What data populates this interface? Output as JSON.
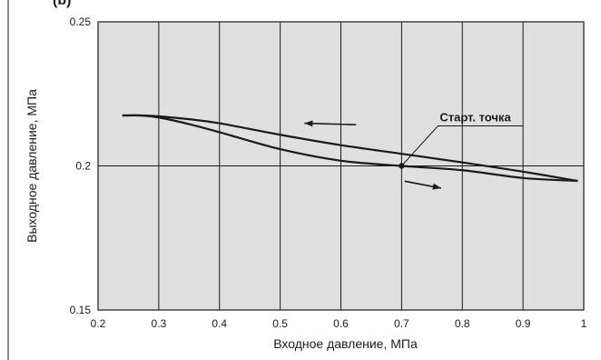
{
  "header_fragment": "(b)",
  "chart_data": {
    "type": "line",
    "xlabel": "Входное давление, МПа",
    "ylabel": "Выходное давление, МПа",
    "xlim": [
      0.2,
      1.0
    ],
    "ylim": [
      0.15,
      0.25
    ],
    "x_ticks": [
      "0.2",
      "0.3",
      "0.4",
      "0.5",
      "0.6",
      "0.7",
      "0.8",
      "0.9",
      "1"
    ],
    "y_ticks": [
      "0.25",
      "0.2",
      "0.15"
    ],
    "grid": "vertical lines at each x tick, horizontal line at 0.2",
    "background": "#e0e0e0",
    "series": [
      {
        "x": [
          0.24,
          0.27,
          0.3,
          0.35,
          0.4,
          0.5,
          0.6,
          0.7,
          0.8,
          0.9,
          0.99
        ],
        "y": [
          0.2175,
          0.2175,
          0.2172,
          0.2162,
          0.2148,
          0.2108,
          0.2072,
          0.2042,
          0.2012,
          0.198,
          0.1948
        ]
      },
      {
        "x": [
          0.24,
          0.27,
          0.3,
          0.35,
          0.4,
          0.5,
          0.6,
          0.7,
          0.8,
          0.9,
          0.99
        ],
        "y": [
          0.2175,
          0.2175,
          0.2168,
          0.2145,
          0.2117,
          0.2058,
          0.2018,
          0.2,
          0.1985,
          0.1958,
          0.1948
        ]
      }
    ],
    "annotations": [
      {
        "text": "Старт. точка",
        "point": [
          0.7,
          0.2
        ]
      }
    ],
    "arrows": [
      {
        "from": [
          0.625,
          0.2143
        ],
        "to": [
          0.54,
          0.2148
        ],
        "meaning": "direction of decreasing inlet pressure (upper curve)"
      },
      {
        "from": [
          0.705,
          0.1947
        ],
        "to": [
          0.765,
          0.1923
        ],
        "meaning": "direction of increasing inlet pressure (lower curve)"
      }
    ],
    "colors": {
      "line": "#1a1a1a",
      "plot_bg": "#e0e0e0",
      "grid": "#1a1a1a"
    }
  }
}
